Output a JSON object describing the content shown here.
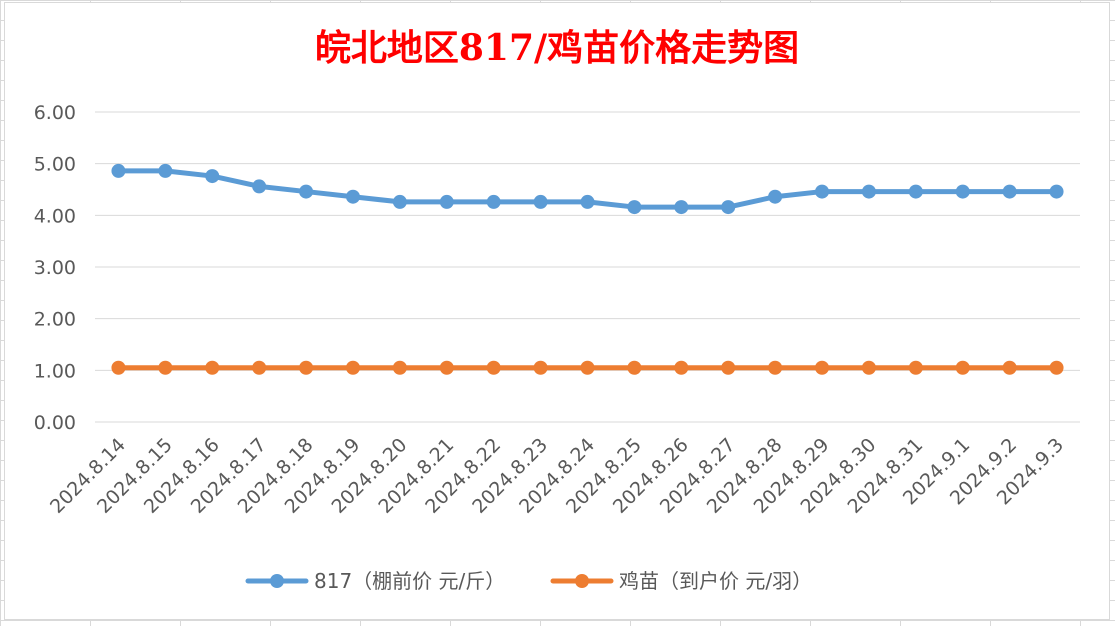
{
  "chart_data": {
    "type": "line",
    "title": "皖北地区817/鸡苗价格走势图",
    "title_color": "#ff0000",
    "xlabel": "",
    "ylabel": "",
    "ylim": [
      0,
      6
    ],
    "yticks": [
      "0.00",
      "1.00",
      "2.00",
      "3.00",
      "4.00",
      "5.00",
      "6.00"
    ],
    "grid": true,
    "legend_position": "bottom",
    "categories": [
      "2024.8.14",
      "2024.8.15",
      "2024.8.16",
      "2024.8.17",
      "2024.8.18",
      "2024.8.19",
      "2024.8.20",
      "2024.8.21",
      "2024.8.22",
      "2024.8.23",
      "2024.8.24",
      "2024.8.25",
      "2024.8.26",
      "2024.8.27",
      "2024.8.28",
      "2024.8.29",
      "2024.8.30",
      "2024.8.31",
      "2024.9.1",
      "2024.9.2",
      "2024.9.3"
    ],
    "series": [
      {
        "name": "817（棚前价 元/斤）",
        "color": "#5b9bd5",
        "values": [
          4.86,
          4.86,
          4.76,
          4.56,
          4.46,
          4.36,
          4.26,
          4.26,
          4.26,
          4.26,
          4.26,
          4.16,
          4.16,
          4.16,
          4.36,
          4.46,
          4.46,
          4.46,
          4.46,
          4.46,
          4.46
        ]
      },
      {
        "name": "鸡苗（到户价 元/羽）",
        "color": "#ed7d31",
        "values": [
          1.05,
          1.05,
          1.05,
          1.05,
          1.05,
          1.05,
          1.05,
          1.05,
          1.05,
          1.05,
          1.05,
          1.05,
          1.05,
          1.05,
          1.05,
          1.05,
          1.05,
          1.05,
          1.05,
          1.05,
          1.05
        ]
      }
    ]
  }
}
